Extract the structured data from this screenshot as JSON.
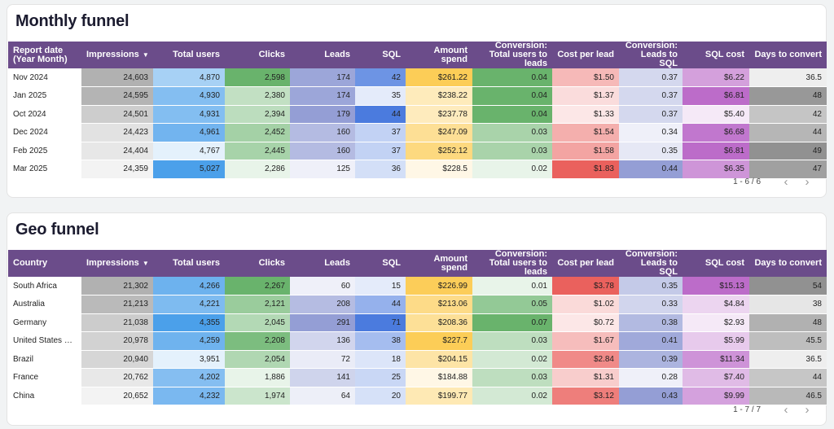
{
  "columns": [
    "Impressions",
    "Total users",
    "Clicks",
    "Leads",
    "SQL",
    "Amount spend",
    "Conversion: Total users to leads",
    "Cost per lead",
    "Conversion: Leads to SQL",
    "SQL cost",
    "Days to convert"
  ],
  "sort_indicator": "▼",
  "column_colors": [
    "#9e9e9e",
    "#1e88e5",
    "#43a047",
    "#7986cb",
    "#1e5ad6",
    "#fbc02d",
    "#43a047",
    "#e53935",
    "#7986cb",
    "#ab47bc",
    "#757575"
  ],
  "pager_prev": "‹",
  "pager_next": "›",
  "monthly": {
    "title": "Monthly funnel",
    "first_col": "Report date (Year Month)",
    "range": "1 - 6 / 6",
    "rows": [
      {
        "label": "Nov 2024",
        "values": [
          "24,603",
          "4,870",
          "2,598",
          "174",
          "42",
          "$261.22",
          "0.04",
          "$1.50",
          "0.37",
          "$6.22",
          "36.5"
        ],
        "n": [
          24603,
          4870,
          2598,
          174,
          42,
          261.22,
          0.04,
          1.5,
          0.37,
          6.22,
          36.5
        ]
      },
      {
        "label": "Jan 2025",
        "values": [
          "24,595",
          "4,930",
          "2,380",
          "174",
          "35",
          "$238.22",
          "0.04",
          "$1.37",
          "0.37",
          "$6.81",
          "48"
        ],
        "n": [
          24595,
          4930,
          2380,
          174,
          35,
          238.22,
          0.04,
          1.37,
          0.37,
          6.81,
          48
        ]
      },
      {
        "label": "Oct 2024",
        "values": [
          "24,501",
          "4,931",
          "2,394",
          "179",
          "44",
          "$237.78",
          "0.04",
          "$1.33",
          "0.37",
          "$5.40",
          "42"
        ],
        "n": [
          24501,
          4931,
          2394,
          179,
          44,
          237.78,
          0.04,
          1.33,
          0.37,
          5.4,
          42
        ]
      },
      {
        "label": "Dec 2024",
        "values": [
          "24,423",
          "4,961",
          "2,452",
          "160",
          "37",
          "$247.09",
          "0.03",
          "$1.54",
          "0.34",
          "$6.68",
          "44"
        ],
        "n": [
          24423,
          4961,
          2452,
          160,
          37,
          247.09,
          0.03,
          1.54,
          0.34,
          6.68,
          44
        ]
      },
      {
        "label": "Feb 2025",
        "values": [
          "24,404",
          "4,767",
          "2,445",
          "160",
          "37",
          "$252.12",
          "0.03",
          "$1.58",
          "0.35",
          "$6.81",
          "49"
        ],
        "n": [
          24404,
          4767,
          2445,
          160,
          37,
          252.12,
          0.03,
          1.58,
          0.35,
          6.81,
          49
        ]
      },
      {
        "label": "Mar 2025",
        "values": [
          "24,359",
          "5,027",
          "2,286",
          "125",
          "36",
          "$228.5",
          "0.02",
          "$1.83",
          "0.44",
          "$6.35",
          "47"
        ],
        "n": [
          24359,
          5027,
          2286,
          125,
          36,
          228.5,
          0.02,
          1.83,
          0.44,
          6.35,
          47
        ]
      }
    ]
  },
  "geo": {
    "title": "Geo funnel",
    "first_col": "Country",
    "range": "1 - 7 / 7",
    "rows": [
      {
        "label": "South Africa",
        "values": [
          "21,302",
          "4,266",
          "2,267",
          "60",
          "15",
          "$226.99",
          "0.01",
          "$3.78",
          "0.35",
          "$15.13",
          "54"
        ],
        "n": [
          21302,
          4266,
          2267,
          60,
          15,
          226.99,
          0.01,
          3.78,
          0.35,
          15.13,
          54
        ]
      },
      {
        "label": "Australia",
        "values": [
          "21,213",
          "4,221",
          "2,121",
          "208",
          "44",
          "$213.06",
          "0.05",
          "$1.02",
          "0.33",
          "$4.84",
          "38"
        ],
        "n": [
          21213,
          4221,
          2121,
          208,
          44,
          213.06,
          0.05,
          1.02,
          0.33,
          4.84,
          38
        ]
      },
      {
        "label": "Germany",
        "values": [
          "21,038",
          "4,355",
          "2,045",
          "291",
          "71",
          "$208.36",
          "0.07",
          "$0.72",
          "0.38",
          "$2.93",
          "48"
        ],
        "n": [
          21038,
          4355,
          2045,
          291,
          71,
          208.36,
          0.07,
          0.72,
          0.38,
          2.93,
          48
        ]
      },
      {
        "label": "United States of …",
        "values": [
          "20,978",
          "4,259",
          "2,208",
          "136",
          "38",
          "$227.7",
          "0.03",
          "$1.67",
          "0.41",
          "$5.99",
          "45.5"
        ],
        "n": [
          20978,
          4259,
          2208,
          136,
          38,
          227.7,
          0.03,
          1.67,
          0.41,
          5.99,
          45.5
        ]
      },
      {
        "label": "Brazil",
        "values": [
          "20,940",
          "3,951",
          "2,054",
          "72",
          "18",
          "$204.15",
          "0.02",
          "$2.84",
          "0.39",
          "$11.34",
          "36.5"
        ],
        "n": [
          20940,
          3951,
          2054,
          72,
          18,
          204.15,
          0.02,
          2.84,
          0.39,
          11.34,
          36.5
        ]
      },
      {
        "label": "France",
        "values": [
          "20,762",
          "4,202",
          "1,886",
          "141",
          "25",
          "$184.88",
          "0.03",
          "$1.31",
          "0.28",
          "$7.40",
          "44"
        ],
        "n": [
          20762,
          4202,
          1886,
          141,
          25,
          184.88,
          0.03,
          1.31,
          0.28,
          7.4,
          44
        ]
      },
      {
        "label": "China",
        "values": [
          "20,652",
          "4,232",
          "1,974",
          "64",
          "20",
          "$199.77",
          "0.02",
          "$3.12",
          "0.43",
          "$9.99",
          "46.5"
        ],
        "n": [
          20652,
          4232,
          1974,
          64,
          20,
          199.77,
          0.02,
          3.12,
          0.43,
          9.99,
          46.5
        ]
      }
    ]
  }
}
